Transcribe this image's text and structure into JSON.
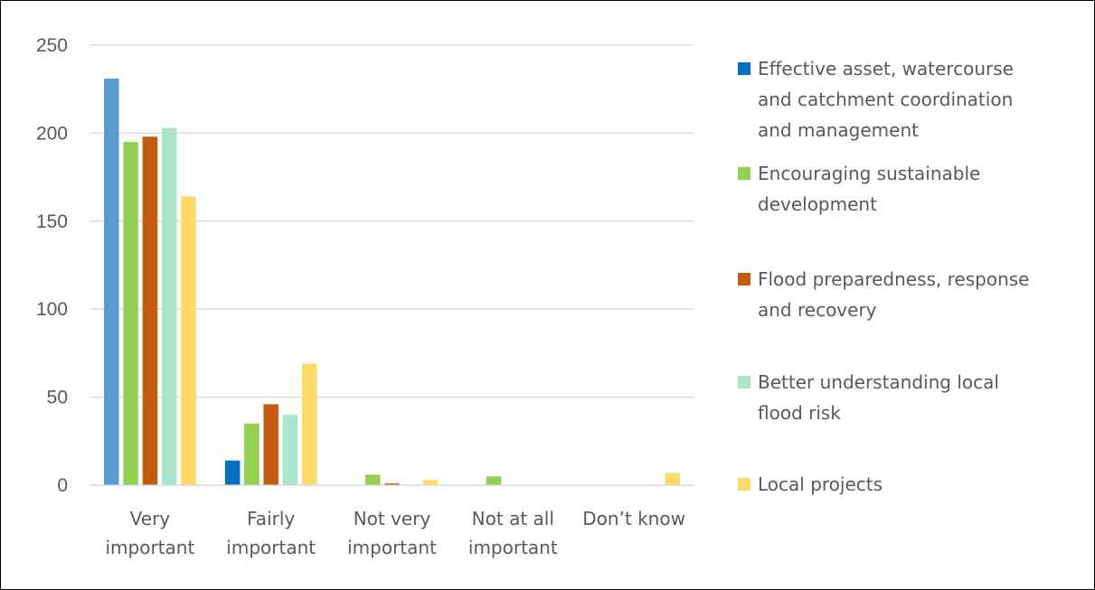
{
  "chart_data": {
    "type": "bar",
    "title": "",
    "xlabel": "",
    "ylabel": "",
    "ylim": [
      0,
      250
    ],
    "yticks": [
      0,
      50,
      100,
      150,
      200,
      250
    ],
    "grid": true,
    "legend_position": "right",
    "categories": [
      [
        "Very",
        "important"
      ],
      [
        "Fairly",
        "important"
      ],
      [
        "Not very",
        "important"
      ],
      [
        "Not at all",
        "important"
      ],
      [
        "Don’t know"
      ]
    ],
    "series": [
      {
        "name": "Effective asset, watercourse and catchment coordination and management",
        "legend_lines": [
          "Effective asset, watercourse",
          "and catchment coordination",
          "and management"
        ],
        "color": "#5B9BD5",
        "values": [
          231,
          14,
          0,
          0,
          0
        ]
      },
      {
        "name": "Encouraging sustainable development",
        "legend_lines": [
          "Encouraging sustainable",
          "development"
        ],
        "color": "#92D050",
        "values": [
          195,
          35,
          6,
          5,
          0
        ]
      },
      {
        "name": "Flood preparedness, response and recovery",
        "legend_lines": [
          "Flood preparedness, response",
          "and recovery"
        ],
        "color": "#C55A11",
        "values": [
          198,
          46,
          1,
          0,
          0
        ]
      },
      {
        "name": "Better understanding local flood risk",
        "legend_lines": [
          "Better understanding local",
          "flood risk"
        ],
        "color": "#A9E6CE",
        "values": [
          203,
          40,
          0,
          0,
          0
        ]
      },
      {
        "name": "Local projects",
        "legend_lines": [
          "Local projects"
        ],
        "color": "#FFD966",
        "values": [
          164,
          69,
          3,
          0,
          7
        ]
      }
    ],
    "legend_swatch_colors": [
      "#0070C0",
      "#92D050",
      "#C55A11",
      "#A9E6CE",
      "#FFD966"
    ]
  }
}
